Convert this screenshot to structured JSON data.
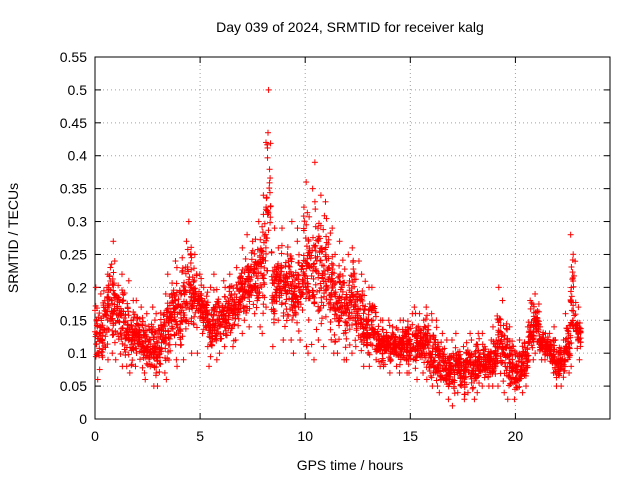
{
  "chart_data": {
    "type": "scatter",
    "title": "Day 039 of 2024, SRMTID for receiver kalg",
    "xlabel": "GPS time / hours",
    "ylabel": "SRMTID / TECUs",
    "xlim": [
      0,
      24.5
    ],
    "ylim": [
      0,
      0.55
    ],
    "xticks": [
      0,
      5,
      10,
      15,
      20
    ],
    "xtick_labels": [
      "0",
      "5",
      "10",
      "15",
      "20"
    ],
    "yticks": [
      0,
      0.05,
      0.1,
      0.15,
      0.2,
      0.25,
      0.3,
      0.35,
      0.4,
      0.45,
      0.5,
      0.55
    ],
    "ytick_labels": [
      "0",
      "0.05",
      "0.1",
      "0.15",
      "0.2",
      "0.25",
      "0.3",
      "0.35",
      "0.4",
      "0.45",
      "0.5",
      "0.55"
    ],
    "grid": true,
    "marker": "+",
    "color": "#ff0000",
    "series": [
      {
        "name": "SRMTID",
        "x_start": 0.0,
        "x_step": 0.25,
        "bands": [
          [
            0.07,
            0.2
          ],
          [
            0.06,
            0.19
          ],
          [
            0.09,
            0.22
          ],
          [
            0.1,
            0.27
          ],
          [
            0.09,
            0.24
          ],
          [
            0.08,
            0.22
          ],
          [
            0.08,
            0.21
          ],
          [
            0.07,
            0.18
          ],
          [
            0.08,
            0.18
          ],
          [
            0.07,
            0.17
          ],
          [
            0.06,
            0.16
          ],
          [
            0.05,
            0.17
          ],
          [
            0.05,
            0.16
          ],
          [
            0.07,
            0.19
          ],
          [
            0.06,
            0.22
          ],
          [
            0.09,
            0.24
          ],
          [
            0.08,
            0.23
          ],
          [
            0.09,
            0.27
          ],
          [
            0.1,
            0.3
          ],
          [
            0.1,
            0.25
          ],
          [
            0.13,
            0.22
          ],
          [
            0.11,
            0.2
          ],
          [
            0.08,
            0.2
          ],
          [
            0.09,
            0.22
          ],
          [
            0.1,
            0.21
          ],
          [
            0.11,
            0.2
          ],
          [
            0.11,
            0.22
          ],
          [
            0.12,
            0.23
          ],
          [
            0.13,
            0.26
          ],
          [
            0.14,
            0.28
          ],
          [
            0.16,
            0.27
          ],
          [
            0.14,
            0.3
          ],
          [
            0.13,
            0.34
          ],
          [
            0.17,
            0.5
          ],
          [
            0.11,
            0.29
          ],
          [
            0.15,
            0.26
          ],
          [
            0.12,
            0.29
          ],
          [
            0.12,
            0.3
          ],
          [
            0.1,
            0.27
          ],
          [
            0.12,
            0.29
          ],
          [
            0.11,
            0.36
          ],
          [
            0.1,
            0.35
          ],
          [
            0.09,
            0.39
          ],
          [
            0.12,
            0.34
          ],
          [
            0.11,
            0.33
          ],
          [
            0.1,
            0.29
          ],
          [
            0.1,
            0.25
          ],
          [
            0.09,
            0.27
          ],
          [
            0.09,
            0.25
          ],
          [
            0.1,
            0.26
          ],
          [
            0.11,
            0.24
          ],
          [
            0.08,
            0.22
          ],
          [
            0.08,
            0.2
          ],
          [
            0.09,
            0.2
          ],
          [
            0.08,
            0.15
          ],
          [
            0.08,
            0.15
          ],
          [
            0.07,
            0.15
          ],
          [
            0.08,
            0.14
          ],
          [
            0.07,
            0.15
          ],
          [
            0.07,
            0.15
          ],
          [
            0.07,
            0.16
          ],
          [
            0.06,
            0.17
          ],
          [
            0.07,
            0.16
          ],
          [
            0.06,
            0.17
          ],
          [
            0.05,
            0.16
          ],
          [
            0.05,
            0.15
          ],
          [
            0.04,
            0.13
          ],
          [
            0.03,
            0.12
          ],
          [
            0.02,
            0.12
          ],
          [
            0.04,
            0.13
          ],
          [
            0.03,
            0.11
          ],
          [
            0.04,
            0.13
          ],
          [
            0.03,
            0.12
          ],
          [
            0.04,
            0.13
          ],
          [
            0.05,
            0.13
          ],
          [
            0.05,
            0.12
          ],
          [
            0.05,
            0.14
          ],
          [
            0.05,
            0.2
          ],
          [
            0.04,
            0.18
          ],
          [
            0.03,
            0.14
          ],
          [
            0.03,
            0.11
          ],
          [
            0.04,
            0.12
          ],
          [
            0.05,
            0.14
          ],
          [
            0.09,
            0.18
          ],
          [
            0.1,
            0.19
          ],
          [
            0.09,
            0.14
          ],
          [
            0.09,
            0.13
          ],
          [
            0.07,
            0.14
          ],
          [
            0.05,
            0.12
          ],
          [
            0.05,
            0.12
          ],
          [
            0.07,
            0.16
          ],
          [
            0.08,
            0.28
          ],
          [
            0.09,
            0.17
          ]
        ]
      }
    ]
  }
}
